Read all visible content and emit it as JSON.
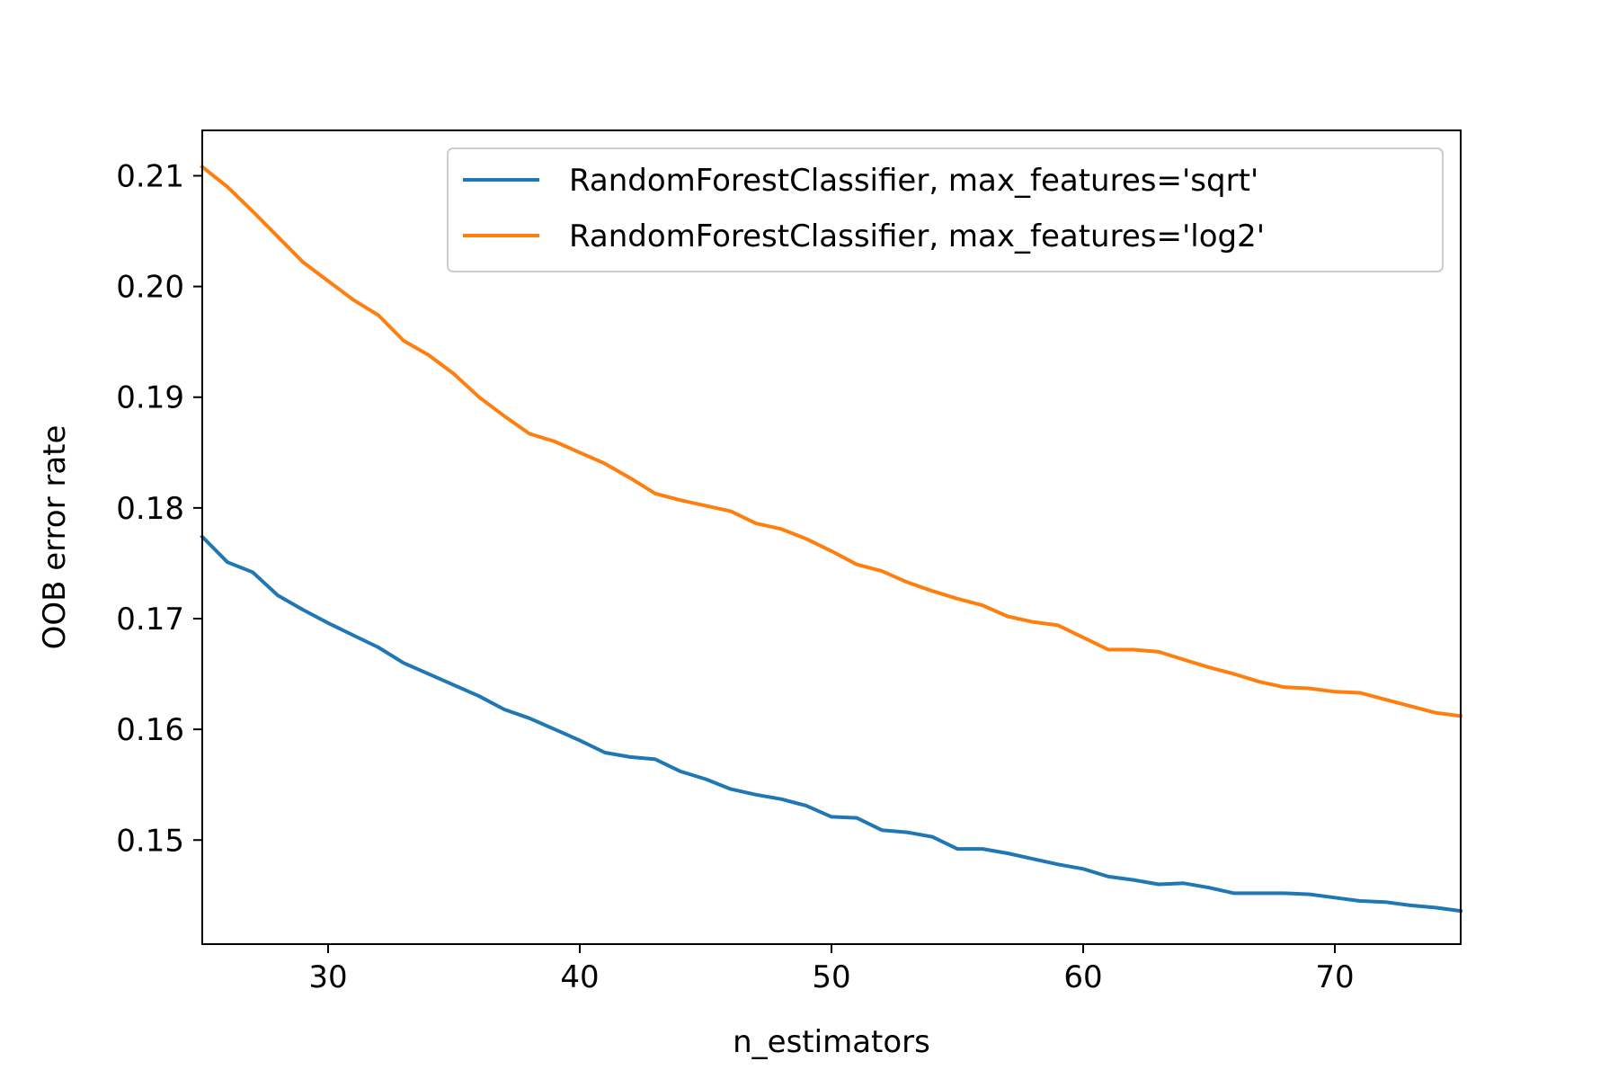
{
  "chart_data": {
    "type": "line",
    "title": "",
    "xlabel": "n_estimators",
    "ylabel": "OOB error rate",
    "xlim": [
      25,
      75
    ],
    "ylim": [
      0.1406,
      0.2141
    ],
    "x_ticks": [
      30,
      40,
      50,
      60,
      70
    ],
    "x_tick_labels": [
      "30",
      "40",
      "50",
      "60",
      "70"
    ],
    "y_ticks": [
      0.15,
      0.16,
      0.17,
      0.18,
      0.19,
      0.2,
      0.21
    ],
    "y_tick_labels": [
      "0.15",
      "0.16",
      "0.17",
      "0.18",
      "0.19",
      "0.20",
      "0.21"
    ],
    "grid": false,
    "legend_position": "top-right",
    "x": [
      25,
      26,
      27,
      28,
      29,
      30,
      31,
      32,
      33,
      34,
      35,
      36,
      37,
      38,
      39,
      40,
      41,
      42,
      43,
      44,
      45,
      46,
      47,
      48,
      49,
      50,
      51,
      52,
      53,
      54,
      55,
      56,
      57,
      58,
      59,
      60,
      61,
      62,
      63,
      64,
      65,
      66,
      67,
      68,
      69,
      70,
      71,
      72,
      73,
      74,
      75
    ],
    "series": [
      {
        "name": "RandomForestClassifier, max_features='sqrt'",
        "color": "#1f77b4",
        "values": [
          0.1774,
          0.1751,
          0.1742,
          0.1721,
          0.1708,
          0.1696,
          0.1685,
          0.1674,
          0.166,
          0.165,
          0.164,
          0.163,
          0.1618,
          0.161,
          0.16,
          0.159,
          0.1579,
          0.1575,
          0.1573,
          0.1562,
          0.1555,
          0.1546,
          0.1541,
          0.1537,
          0.1531,
          0.1521,
          0.152,
          0.1509,
          0.1507,
          0.1503,
          0.1492,
          0.1492,
          0.1488,
          0.1483,
          0.1478,
          0.1474,
          0.1467,
          0.1464,
          0.146,
          0.1461,
          0.1457,
          0.1452,
          0.1452,
          0.1452,
          0.1451,
          0.1448,
          0.1445,
          0.1444,
          0.1441,
          0.1439,
          0.1436
        ]
      },
      {
        "name": "RandomForestClassifier, max_features='log2'",
        "color": "#ff7f0e",
        "values": [
          0.2108,
          0.209,
          0.2068,
          0.2045,
          0.2022,
          0.2005,
          0.1988,
          0.1974,
          0.1951,
          0.1938,
          0.1921,
          0.19,
          0.1883,
          0.1867,
          0.186,
          0.185,
          0.184,
          0.1827,
          0.1813,
          0.1807,
          0.1802,
          0.1797,
          0.1786,
          0.1781,
          0.1772,
          0.1761,
          0.1749,
          0.1743,
          0.1733,
          0.1725,
          0.1718,
          0.1712,
          0.1702,
          0.1697,
          0.1694,
          0.1683,
          0.1672,
          0.1672,
          0.167,
          0.1663,
          0.1656,
          0.165,
          0.1643,
          0.1638,
          0.1637,
          0.1634,
          0.1633,
          0.1627,
          0.1621,
          0.1615,
          0.1612
        ]
      }
    ]
  }
}
